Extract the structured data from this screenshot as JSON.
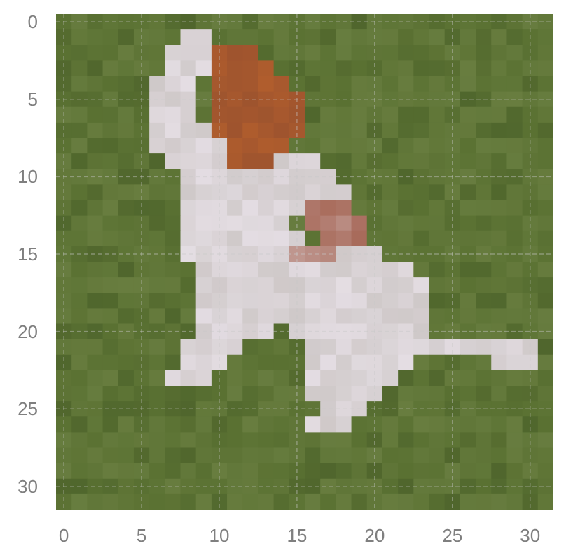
{
  "chart_data": {
    "type": "heatmap",
    "image_size": [
      32,
      32
    ],
    "x_ticks": [
      0,
      5,
      10,
      15,
      20,
      25,
      30
    ],
    "y_ticks": [
      0,
      5,
      10,
      15,
      20,
      25,
      30
    ],
    "xlim": [
      -0.5,
      31.5
    ],
    "ylim": [
      31.5,
      -0.5
    ],
    "grid": true,
    "x_tick_labels": [
      "0",
      "5",
      "10",
      "15",
      "20",
      "25",
      "30"
    ],
    "y_tick_labels": [
      "0",
      "5",
      "10",
      "15",
      "20",
      "25",
      "30"
    ],
    "colors": {
      "background_grass": "#5b7233",
      "dark_grass": "#445a26",
      "light_grass": "#6e8245",
      "fur_white": "#e4dde3",
      "fur_shadow": "#b5b0a8",
      "ear_brown": "#b05d2d",
      "spot_brown": "#a86a5a",
      "grid_line": "#c8c8c8",
      "tick_text": "#7f7f7f"
    }
  }
}
